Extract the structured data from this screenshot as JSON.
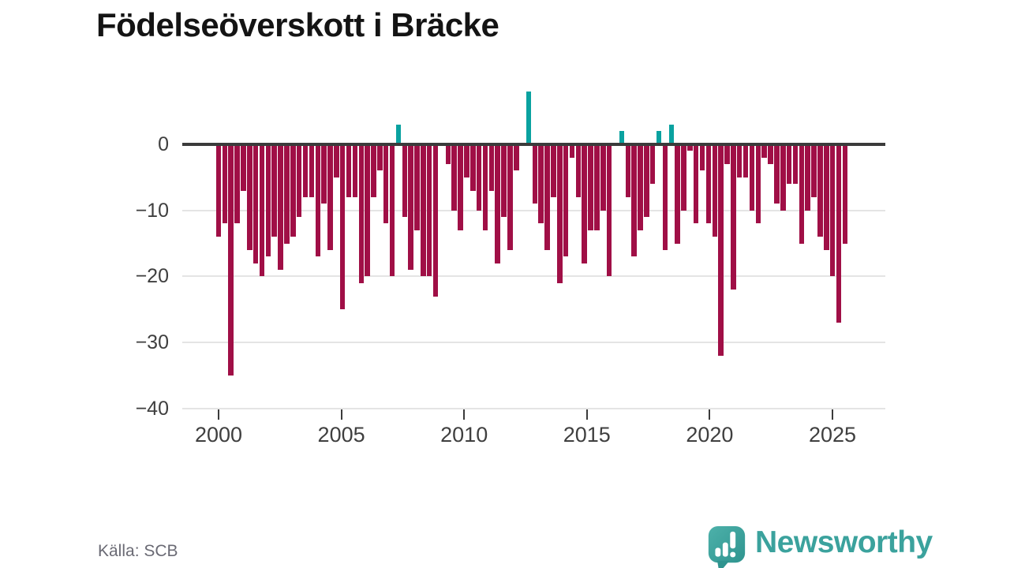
{
  "title": "Födelseöverskott i Bräcke",
  "source": "Källa: SCB",
  "logo": {
    "text": "Newsworthy"
  },
  "chart_data": {
    "type": "bar",
    "title": "Födelseöverskott i Bräcke",
    "xlabel": "",
    "ylabel": "",
    "frequency": "quarterly",
    "start": "2000Q1",
    "end": "2025Q2",
    "ylim": [
      -40,
      10
    ],
    "grid": true,
    "legend": "none",
    "x_ticks": [
      2000,
      2005,
      2010,
      2015,
      2020,
      2025
    ],
    "x_tick_labels": [
      "2000",
      "2005",
      "2010",
      "2015",
      "2020",
      "2025"
    ],
    "y_ticks": [
      0,
      -10,
      -20,
      -30,
      -40
    ],
    "y_tick_labels": [
      "0",
      "−10",
      "−20",
      "−30",
      "−40"
    ],
    "colors": {
      "negative": "#a00f46",
      "positive": "#0aa2a0"
    },
    "values": [
      -14,
      -12,
      -35,
      -12,
      -7,
      -16,
      -18,
      -20,
      -17,
      -14,
      -19,
      -15,
      -14,
      -11,
      -8,
      -8,
      -17,
      -9,
      -16,
      -5,
      -25,
      -8,
      -8,
      -21,
      -20,
      -8,
      -4,
      -12,
      -20,
      3,
      -11,
      -19,
      -13,
      -20,
      -20,
      -23,
      0,
      -3,
      -10,
      -13,
      -5,
      -7,
      -10,
      -13,
      -7,
      -18,
      -11,
      -16,
      -4,
      0,
      8,
      -9,
      -12,
      -16,
      -8,
      -21,
      -17,
      -2,
      -8,
      -18,
      -13,
      -13,
      -10,
      -20,
      0,
      2,
      -8,
      -17,
      -13,
      -11,
      -6,
      2,
      -16,
      3,
      -15,
      -10,
      -1,
      -12,
      -4,
      -12,
      -14,
      -32,
      -3,
      -22,
      -5,
      -5,
      -10,
      -12,
      -2,
      -3,
      -9,
      -10,
      -6,
      -6,
      -15,
      -10,
      -8,
      -14,
      -16,
      -20,
      -27,
      -15
    ]
  }
}
